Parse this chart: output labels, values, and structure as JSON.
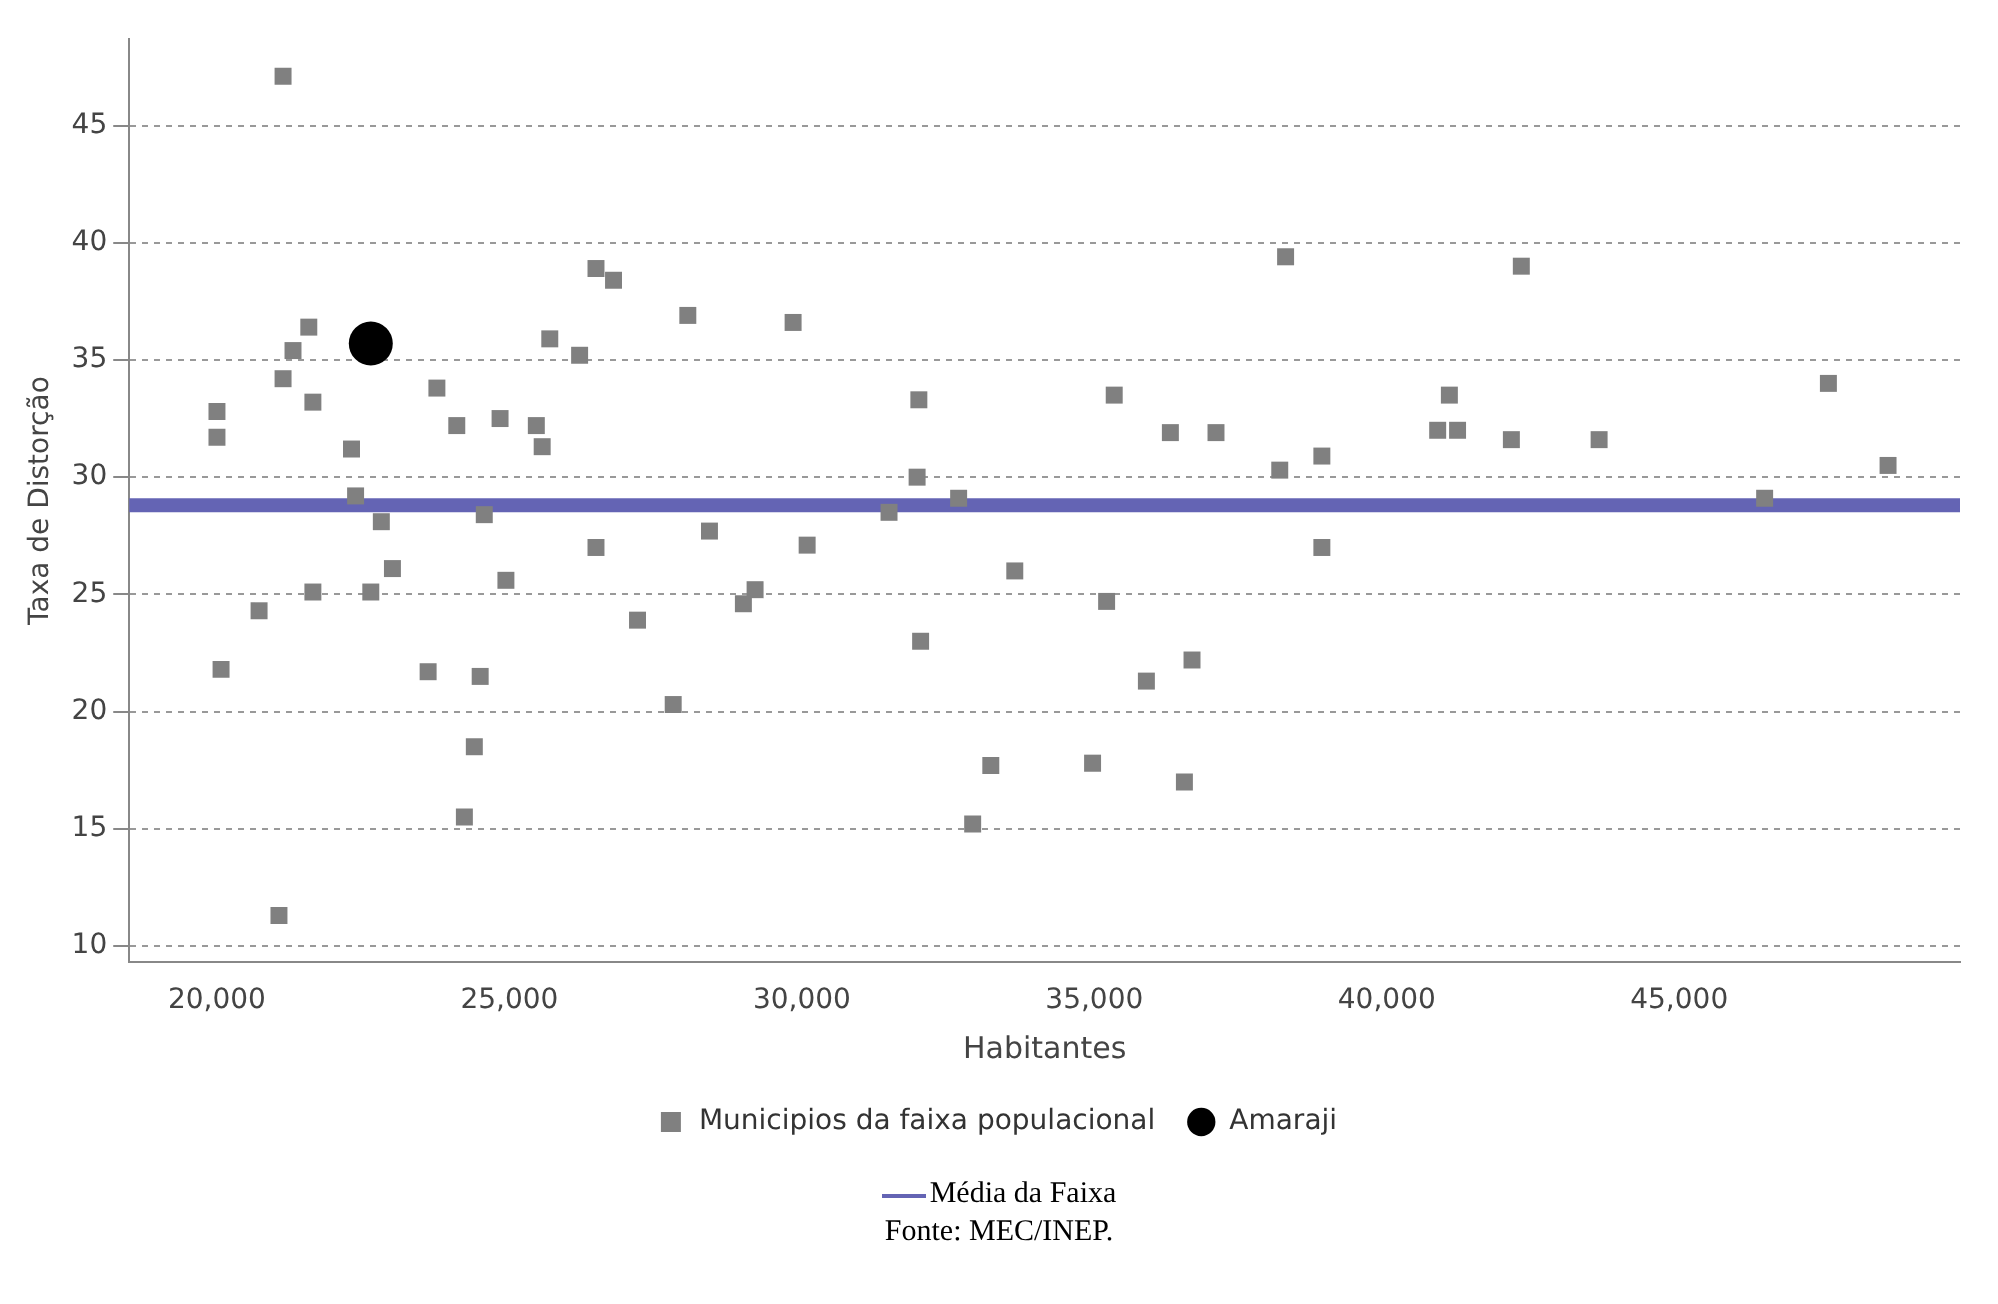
{
  "chart_data": {
    "type": "scatter",
    "xlabel": "Habitantes",
    "ylabel": "Taxa de Distorção",
    "xlim": [
      18500,
      49800
    ],
    "ylim": [
      9.3,
      48.7
    ],
    "xticks": [
      {
        "value": 20000,
        "label": "20,000"
      },
      {
        "value": 25000,
        "label": "25,000"
      },
      {
        "value": 30000,
        "label": "30,000"
      },
      {
        "value": 35000,
        "label": "35,000"
      },
      {
        "value": 40000,
        "label": "40,000"
      },
      {
        "value": 45000,
        "label": "45,000"
      }
    ],
    "yticks": [
      10,
      15,
      20,
      25,
      30,
      35,
      40,
      45
    ],
    "grid": "y",
    "legend": "bottom",
    "series": [
      {
        "name": "Municipios da faixa populacional",
        "color": "#808080",
        "marker": "square",
        "x": [
          20000,
          20000,
          20070,
          20720,
          21130,
          21060,
          21130,
          21300,
          21570,
          21640,
          21640,
          22300,
          22370,
          22630,
          22810,
          23000,
          23610,
          23760,
          24100,
          24230,
          24400,
          24500,
          24570,
          24840,
          24940,
          25460,
          25560,
          25690,
          26200,
          26480,
          26480,
          26780,
          27190,
          27800,
          28050,
          28420,
          29000,
          29200,
          29850,
          30090,
          31490,
          31970,
          32000,
          32030,
          32680,
          32920,
          33230,
          33640,
          34970,
          35210,
          35340,
          35890,
          36300,
          36540,
          36670,
          37080,
          38170,
          38270,
          38890,
          38890,
          40870,
          41070,
          41210,
          42130,
          42300,
          43630,
          46460,
          47550,
          48570
        ],
        "values": [
          32.8,
          31.7,
          21.8,
          24.3,
          47.1,
          11.3,
          34.2,
          35.4,
          36.4,
          33.2,
          25.1,
          31.2,
          29.2,
          25.1,
          28.1,
          26.1,
          21.7,
          33.8,
          32.2,
          15.5,
          18.5,
          21.5,
          28.4,
          32.5,
          25.6,
          32.2,
          31.3,
          35.9,
          35.2,
          27.0,
          38.9,
          38.4,
          23.9,
          20.3,
          36.9,
          27.7,
          24.6,
          25.2,
          36.6,
          27.1,
          28.5,
          30.0,
          33.3,
          23.0,
          29.1,
          15.2,
          17.7,
          26.0,
          17.8,
          24.7,
          33.5,
          21.3,
          31.9,
          17.0,
          22.2,
          31.9,
          30.3,
          39.4,
          30.9,
          27.0,
          32.0,
          33.5,
          32.0,
          31.6,
          39.0,
          31.6,
          29.1,
          34.0,
          30.5
        ]
      },
      {
        "name": "Amaraji",
        "color": "#000000",
        "marker": "circle",
        "x": [
          22630
        ],
        "values": [
          35.7
        ]
      }
    ],
    "ref_lines": [
      {
        "axis": "y",
        "value": 28.8,
        "label": "Média da Faixa",
        "color": "#6464b4"
      }
    ],
    "annotations": [
      "Fonte: MEC/INEP."
    ]
  }
}
